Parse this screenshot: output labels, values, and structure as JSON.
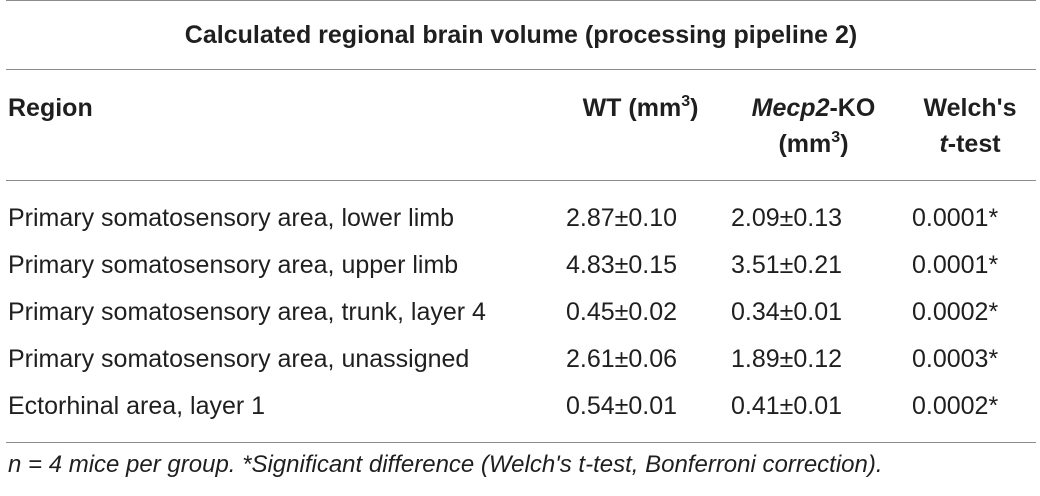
{
  "table": {
    "title": "Calculated regional brain volume (processing pipeline 2)",
    "headers": {
      "region": "Region",
      "wt_label": "WT (mm",
      "wt_sup": "3",
      "wt_close": ")",
      "ko_italic": "Mecp2",
      "ko_rest": "-KO",
      "ko_line2_open": "(mm",
      "ko_sup": "3",
      "ko_close": ")",
      "welch_line1": "Welch's",
      "welch_t": "t",
      "welch_line2_rest": "-test"
    },
    "rows": [
      {
        "region": "Primary somatosensory area, lower limb",
        "wt": "2.87±0.10",
        "ko": "2.09±0.13",
        "p": "0.0001*"
      },
      {
        "region": "Primary somatosensory area, upper limb",
        "wt": "4.83±0.15",
        "ko": "3.51±0.21",
        "p": "0.0001*"
      },
      {
        "region": "Primary somatosensory area, trunk, layer 4",
        "wt": "0.45±0.02",
        "ko": "0.34±0.01",
        "p": "0.0002*"
      },
      {
        "region": "Primary somatosensory area, unassigned",
        "wt": "2.61±0.06",
        "ko": "1.89±0.12",
        "p": "0.0003*"
      },
      {
        "region": "Ectorhinal area, layer 1",
        "wt": "0.54±0.01",
        "ko": "0.41±0.01",
        "p": "0.0002*"
      }
    ],
    "footnote": "n = 4 mice per group. *Significant difference (Welch's t-test, Bonferroni correction)."
  }
}
